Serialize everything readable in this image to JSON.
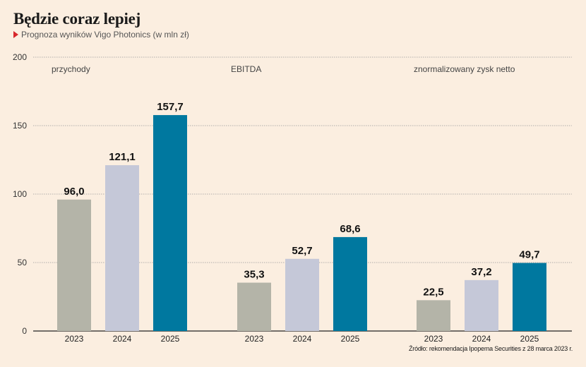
{
  "header": {
    "title": "Będzie coraz lepiej",
    "subtitle": "Prognoza wyników Vigo Photonics (w mln zł)"
  },
  "source": "Źródło: rekomendacja Ipopema Securities z 28 marca 2023 r.",
  "colors": {
    "background": "#fbeee0",
    "accent_marker": "#d7262b",
    "y2023": "#b4b4a8",
    "y2024": "#c5c8d8",
    "y2025": "#00789f"
  },
  "chart_data": {
    "type": "bar",
    "ylim": [
      0,
      200
    ],
    "yticks": [
      0,
      50,
      100,
      150,
      200
    ],
    "grid": true,
    "groups": [
      {
        "label": "przychody",
        "categories": [
          "2023",
          "2024",
          "2025"
        ],
        "values": [
          96.0,
          121.1,
          157.7
        ],
        "value_labels": [
          "96,0",
          "121,1",
          "157,7"
        ]
      },
      {
        "label": "EBITDA",
        "categories": [
          "2023",
          "2024",
          "2025"
        ],
        "values": [
          35.3,
          52.7,
          68.6
        ],
        "value_labels": [
          "35,3",
          "52,7",
          "68,6"
        ]
      },
      {
        "label": "znormalizowany zysk netto",
        "categories": [
          "2023",
          "2024",
          "2025"
        ],
        "values": [
          22.5,
          37.2,
          49.7
        ],
        "value_labels": [
          "22,5",
          "37,2",
          "49,7"
        ]
      }
    ]
  }
}
